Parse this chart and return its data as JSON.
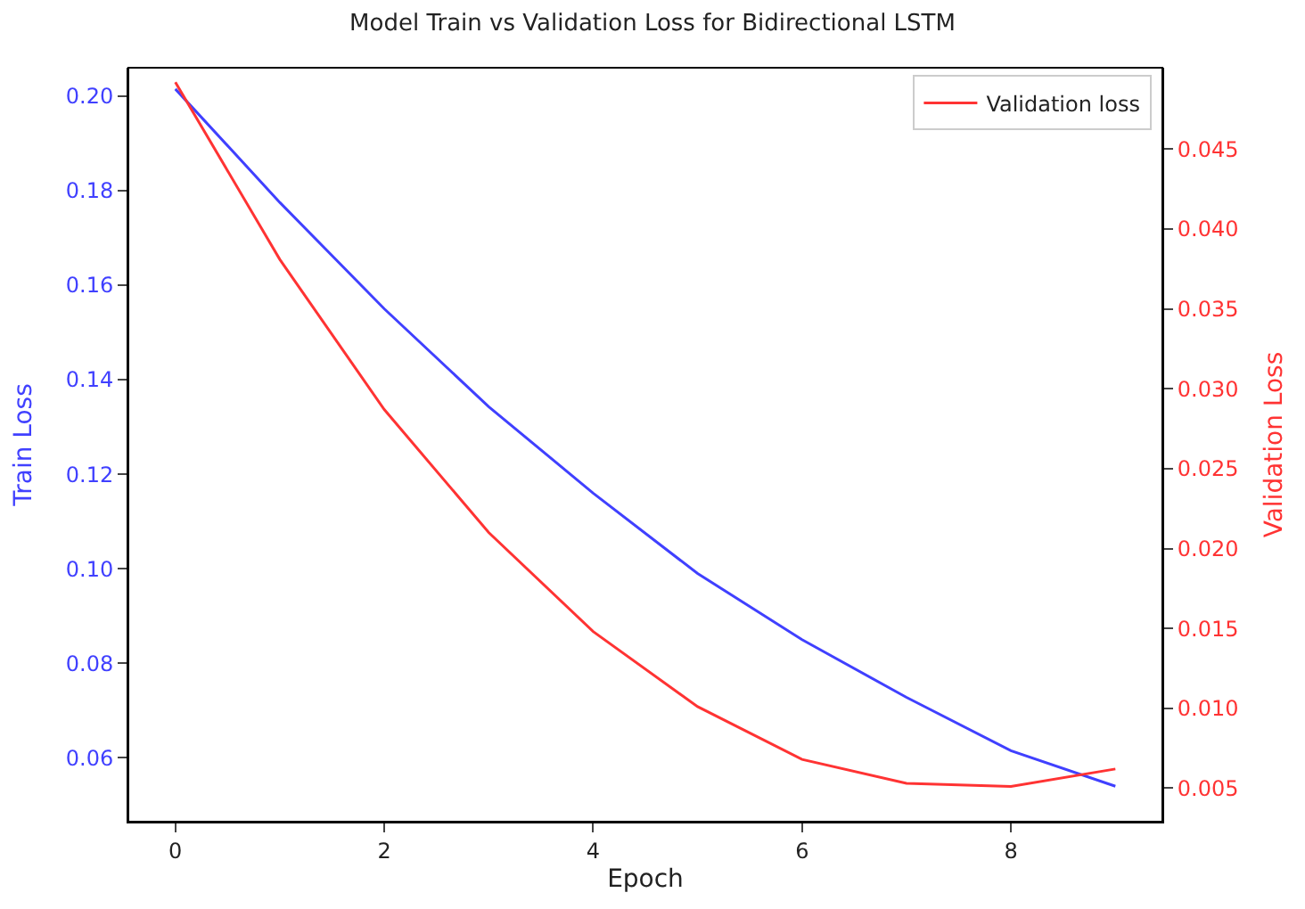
{
  "chart_data": {
    "type": "line",
    "title": "Model Train vs Validation Loss for Bidirectional LSTM",
    "xlabel": "Epoch",
    "ylabel": "Train Loss",
    "y2label": "Validation Loss",
    "x": [
      0,
      1,
      2,
      3,
      4,
      5,
      6,
      7,
      8,
      9
    ],
    "series": [
      {
        "color": "#4040ff",
        "values": [
          0.2015,
          0.1775,
          0.155,
          0.1343,
          0.116,
          0.099,
          0.085,
          0.0728,
          0.0615,
          0.054
        ]
      },
      {
        "name": "Validation loss",
        "color": "#ff3333",
        "axis": "y2",
        "values": [
          0.0492,
          0.0381,
          0.0287,
          0.021,
          0.0148,
          0.0101,
          0.0068,
          0.0053,
          0.0051,
          0.0062
        ]
      }
    ],
    "xlim": [
      -0.45,
      9.45
    ],
    "xticks": [
      0,
      2,
      4,
      6,
      8
    ],
    "ylim": [
      0.0465,
      0.206
    ],
    "yticks": [
      0.06,
      0.08,
      {
        "value": 0.1,
        "label": "0.10"
      },
      0.12,
      0.14,
      0.16,
      0.18,
      {
        "value": 0.2,
        "label": "0.20"
      }
    ],
    "y2lim": [
      0.0029,
      0.0501
    ],
    "y2ticks": [
      0.005,
      {
        "value": 0.01,
        "label": "0.010"
      },
      0.015,
      {
        "value": 0.02,
        "label": "0.020"
      },
      0.025,
      {
        "value": 0.03,
        "label": "0.030"
      },
      0.035,
      {
        "value": 0.04,
        "label": "0.040"
      },
      0.045
    ],
    "legend": "top right"
  }
}
